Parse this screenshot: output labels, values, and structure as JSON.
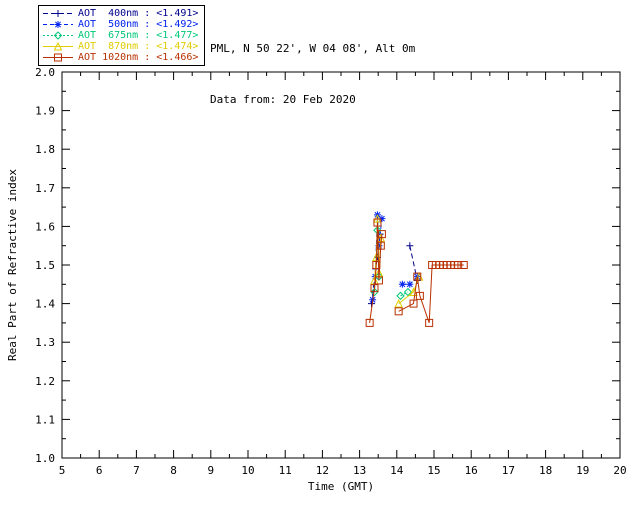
{
  "header": {
    "location_line": "PML, N 50 22', W 04 08', Alt 0m",
    "data_from_line": "Data from: 20 Feb 2020"
  },
  "legend": {
    "labels": [
      "AOT  400nm : <1.491>",
      "AOT  500nm : <1.492>",
      "AOT  675nm : <1.477>",
      "AOT  870nm : <1.474>",
      "AOT 1020nm : <1.466>"
    ]
  },
  "chart_data": {
    "type": "scatter",
    "title": "",
    "xlabel": "Time (GMT)",
    "ylabel": "Real Part of Refractive index",
    "xlim": [
      5,
      20
    ],
    "ylim": [
      1.0,
      2.0
    ],
    "grid": false,
    "legend_position": "top-left",
    "x_ticks": [
      5,
      6,
      7,
      8,
      9,
      10,
      11,
      12,
      13,
      14,
      15,
      16,
      17,
      18,
      19,
      20
    ],
    "y_ticks": [
      "1.0",
      "1.1",
      "1.2",
      "1.3",
      "1.4",
      "1.5",
      "1.6",
      "1.7",
      "1.8",
      "1.9",
      "2.0"
    ],
    "series": [
      {
        "name": "AOT 400nm",
        "retrieved_value": "<1.491>",
        "color": "#00008B",
        "marker": "plus",
        "dash": "5,3",
        "points": [
          [
            13.32,
            1.4
          ],
          [
            13.43,
            1.49
          ],
          [
            13.48,
            1.52
          ],
          [
            13.55,
            1.58
          ],
          [
            14.35,
            1.55
          ],
          [
            14.55,
            1.46
          ]
        ]
      },
      {
        "name": "AOT 500nm",
        "retrieved_value": "<1.492>",
        "color": "#0022EE",
        "marker": "asterisk",
        "dash": "4,3",
        "points": [
          [
            13.35,
            1.41
          ],
          [
            13.42,
            1.47
          ],
          [
            13.48,
            1.63
          ],
          [
            13.52,
            1.55
          ],
          [
            13.6,
            1.62
          ],
          [
            14.15,
            1.45
          ],
          [
            14.35,
            1.45
          ],
          [
            14.55,
            1.47
          ]
        ]
      },
      {
        "name": "AOT 675nm",
        "retrieved_value": "<1.477>",
        "color": "#00C878",
        "marker": "diamond",
        "dash": "2,2",
        "points": [
          [
            13.4,
            1.43
          ],
          [
            13.48,
            1.59
          ],
          [
            13.52,
            1.47
          ],
          [
            14.1,
            1.42
          ],
          [
            14.3,
            1.43
          ]
        ]
      },
      {
        "name": "AOT 870nm",
        "retrieved_value": "<1.474>",
        "color": "#E0CC00",
        "marker": "triangle",
        "dash": "",
        "points": [
          [
            13.4,
            1.46
          ],
          [
            13.45,
            1.52
          ],
          [
            13.48,
            1.62
          ],
          [
            13.52,
            1.48
          ],
          [
            13.57,
            1.57
          ],
          [
            14.05,
            1.4
          ],
          [
            14.45,
            1.43
          ],
          [
            14.6,
            1.47
          ]
        ]
      },
      {
        "name": "AOT 1020nm",
        "retrieved_value": "<1.466>",
        "color": "#B83000",
        "marker": "square",
        "dash": "",
        "points": [
          [
            13.27,
            1.35
          ],
          [
            13.4,
            1.44
          ],
          [
            13.45,
            1.5
          ],
          [
            13.48,
            1.61
          ],
          [
            13.52,
            1.46
          ],
          [
            13.57,
            1.55
          ],
          [
            13.6,
            1.58
          ],
          [
            14.05,
            1.38
          ],
          [
            14.45,
            1.4
          ],
          [
            14.55,
            1.47
          ],
          [
            14.62,
            1.42
          ],
          [
            14.87,
            1.35
          ],
          [
            14.95,
            1.5
          ],
          [
            15.05,
            1.5
          ],
          [
            15.15,
            1.5
          ],
          [
            15.25,
            1.5
          ],
          [
            15.35,
            1.5
          ],
          [
            15.45,
            1.5
          ],
          [
            15.55,
            1.5
          ],
          [
            15.65,
            1.5
          ],
          [
            15.8,
            1.5
          ]
        ]
      }
    ]
  }
}
